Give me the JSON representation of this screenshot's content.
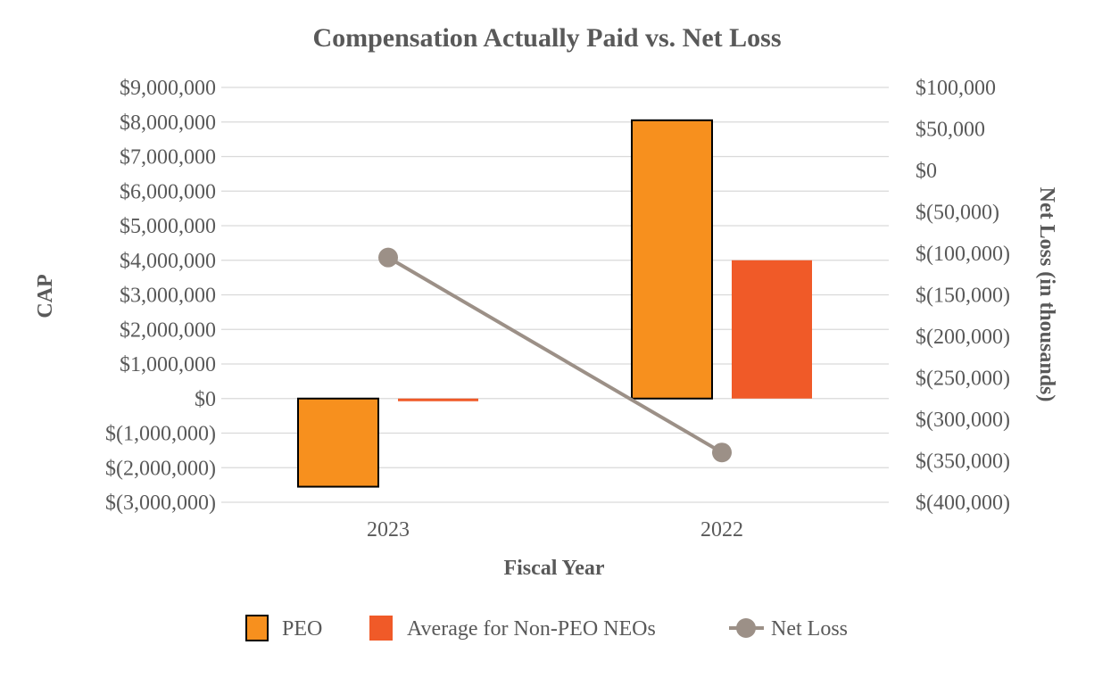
{
  "chart_data": {
    "type": "bar",
    "title": "Compensation Actually Paid vs. Net Loss",
    "xlabel": "Fiscal Year",
    "ylabel": "CAP",
    "y2label": "Net Loss (in thousands)",
    "categories": [
      "2023",
      "2022"
    ],
    "ylim": [
      -3000000,
      9000000
    ],
    "y2lim": [
      -400000,
      100000
    ],
    "yticks": [
      9000000,
      8000000,
      7000000,
      6000000,
      5000000,
      4000000,
      3000000,
      2000000,
      1000000,
      0,
      -1000000,
      -2000000,
      -3000000
    ],
    "ytick_labels": [
      "$9,000,000",
      "$8,000,000",
      "$7,000,000",
      "$6,000,000",
      "$5,000,000",
      "$4,000,000",
      "$3,000,000",
      "$2,000,000",
      "$1,000,000",
      "$0",
      "$(1,000,000)",
      "$(2,000,000)",
      "$(3,000,000)"
    ],
    "y2ticks": [
      100000,
      50000,
      0,
      -50000,
      -100000,
      -150000,
      -200000,
      -250000,
      -300000,
      -350000,
      -400000
    ],
    "y2tick_labels": [
      "$100,000",
      "$50,000",
      "$0",
      "$(50,000)",
      "$(100,000)",
      "$(150,000)",
      "$(200,000)",
      "$(250,000)",
      "$(300,000)",
      "$(350,000)",
      "$(400,000)"
    ],
    "series": [
      {
        "name": "PEO",
        "type": "bar",
        "axis": "left",
        "color": "#F7901E",
        "outline": "#000000",
        "values": [
          -2550000,
          8050000
        ]
      },
      {
        "name": "Average for Non-PEO NEOs",
        "type": "bar",
        "axis": "left",
        "color": "#F05A28",
        "values": [
          -70000,
          4000000
        ]
      },
      {
        "name": "Net Loss",
        "type": "line",
        "axis": "right",
        "color": "#9C9087",
        "values": [
          -105000,
          -340000
        ]
      }
    ],
    "grid": true,
    "legend_position": "bottom"
  }
}
